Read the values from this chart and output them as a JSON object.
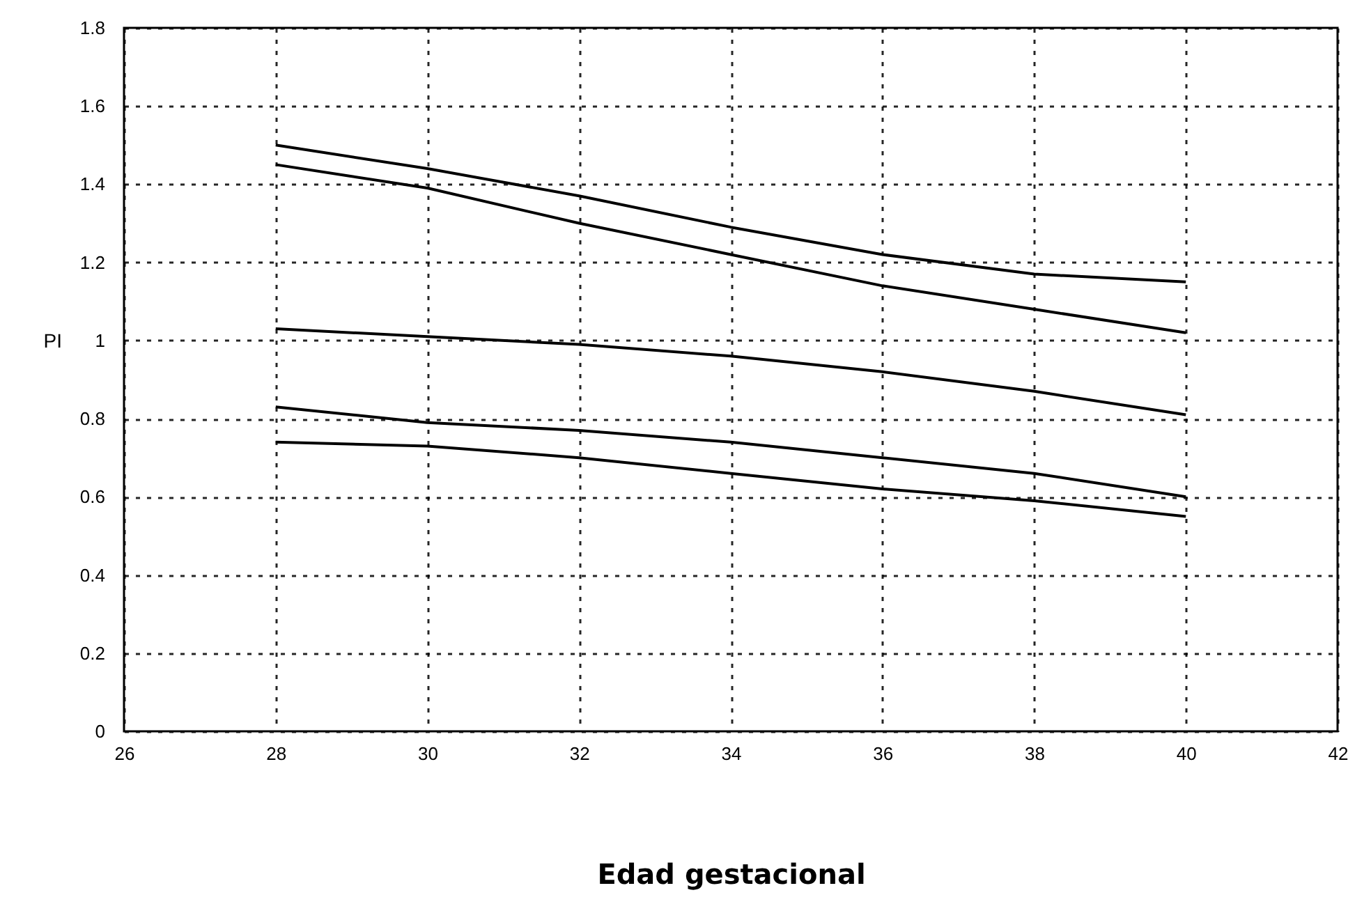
{
  "chart_data": {
    "type": "line",
    "xlabel": "Edad gestacional",
    "ylabel": "PI",
    "x": [
      28,
      30,
      32,
      34,
      36,
      38,
      40
    ],
    "series": [
      {
        "color": "#000000",
        "values": [
          1.5,
          1.44,
          1.37,
          1.29,
          1.22,
          1.17,
          1.15
        ]
      },
      {
        "color": "#000000",
        "values": [
          1.45,
          1.39,
          1.3,
          1.22,
          1.14,
          1.08,
          1.02
        ]
      },
      {
        "color": "#000000",
        "values": [
          1.03,
          1.01,
          0.99,
          0.96,
          0.92,
          0.87,
          0.81
        ]
      },
      {
        "color": "#000000",
        "values": [
          0.83,
          0.79,
          0.77,
          0.74,
          0.7,
          0.66,
          0.6
        ]
      },
      {
        "color": "#000000",
        "values": [
          0.74,
          0.73,
          0.7,
          0.66,
          0.62,
          0.59,
          0.55
        ]
      }
    ],
    "xlim": [
      26,
      42
    ],
    "xticks": [
      26,
      28,
      30,
      32,
      34,
      36,
      38,
      40,
      42
    ],
    "ylim": [
      0,
      1.8
    ],
    "yticks": [
      0,
      0.2,
      0.4,
      0.6,
      0.8,
      1,
      1.2,
      1.4,
      1.6,
      1.8
    ],
    "grid": true,
    "line_style": "solid",
    "marker": "none"
  }
}
